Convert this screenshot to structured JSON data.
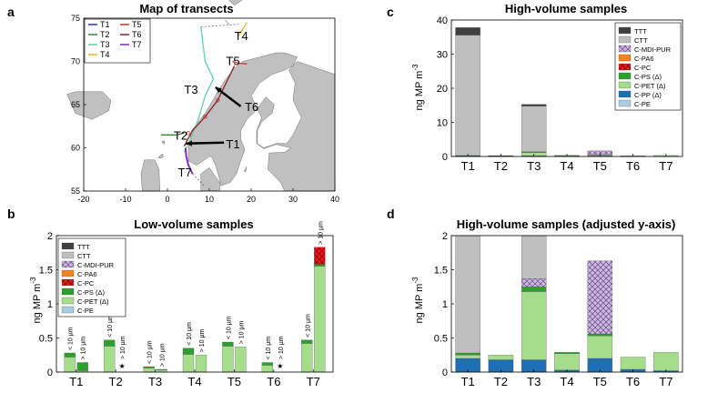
{
  "colors": {
    "TTT": "#404040",
    "CTT": "#bfbfbf",
    "C-MDI-PUR": "#cdb7e0",
    "C-PA6": "#f5821f",
    "C-PC": "#e41a1c",
    "C-PS (Δ)": "#2ca02c",
    "C-PET (Δ)": "#a6dd8c",
    "C-PP (Δ)": "#1f6fb4",
    "C-PE": "#a9cce3",
    "land": "#c0c0c0",
    "T1": "#1f3aa0",
    "T2": "#2e8b2e",
    "T3": "#5fd0b0",
    "T4": "#f0b020",
    "T5": "#c0392b",
    "T6": "#8b2323",
    "T7": "#7b2fbe"
  },
  "icons": {
    "arrow": "black-arrow-icon",
    "star": "star-glyph"
  },
  "star_glyph": "★",
  "chart_data": [
    {
      "panel": "a",
      "type": "map",
      "title": "Map of transects",
      "xlim": [
        -20,
        40
      ],
      "ylim": [
        55,
        75
      ],
      "xticks": [
        "-20",
        "-10",
        "0",
        "10",
        "20",
        "30",
        "40"
      ],
      "yticks": [
        "55",
        "60",
        "65",
        "70",
        "75"
      ],
      "legend": [
        "T1",
        "T2",
        "T3",
        "T4",
        "T5",
        "T6",
        "T7"
      ],
      "legend_position": "top-left",
      "annotations": [
        {
          "text": "T1",
          "lon": 14,
          "lat": 60.5
        },
        {
          "text": "T2",
          "lon": 1.5,
          "lat": 61.5
        },
        {
          "text": "T3",
          "lon": 4,
          "lat": 66.8
        },
        {
          "text": "T4",
          "lon": 16,
          "lat": 73
        },
        {
          "text": "T5",
          "lon": 14,
          "lat": 70.1
        },
        {
          "text": "T6",
          "lon": 18.5,
          "lat": 64.8
        },
        {
          "text": "T7",
          "lon": 2.5,
          "lat": 57.2
        }
      ],
      "transects": [
        {
          "name": "T1",
          "path": [
            [
              4,
              60.2
            ],
            [
              4.5,
              60.5
            ]
          ]
        },
        {
          "name": "T2",
          "path": [
            [
              -1.5,
              61.5
            ],
            [
              2,
              61.5
            ],
            [
              4,
              61.7
            ]
          ]
        },
        {
          "name": "T3",
          "path": [
            [
              4,
              59.5
            ],
            [
              5.5,
              61
            ],
            [
              7.5,
              63.5
            ],
            [
              9,
              66
            ],
            [
              11,
              68
            ],
            [
              9,
              70
            ],
            [
              8,
              74
            ]
          ]
        },
        {
          "name": "T4",
          "path": [
            [
              17,
              73
            ],
            [
              19,
              74.5
            ]
          ]
        },
        {
          "name": "T5",
          "path": [
            [
              15.5,
              70
            ],
            [
              17,
              69.8
            ],
            [
              19,
              69.7
            ]
          ]
        },
        {
          "name": "T6",
          "path": [
            [
              4,
              60.2
            ],
            [
              6,
              62
            ],
            [
              9,
              63.6
            ],
            [
              12,
              65.5
            ],
            [
              14,
              67.5
            ],
            [
              16,
              69.5
            ]
          ]
        },
        {
          "name": "T7",
          "path": [
            [
              4.3,
              60
            ],
            [
              4.5,
              59
            ],
            [
              5,
              58
            ],
            [
              6,
              57
            ]
          ]
        }
      ]
    },
    {
      "panel": "b",
      "type": "bar",
      "stacked": true,
      "title": "Low-volume samples",
      "ylabel": "ng MP m",
      "ylabel_sup": "-3",
      "ylim": [
        0,
        2
      ],
      "yticks": [
        "0",
        "0.5",
        "1",
        "1.5",
        "2"
      ],
      "categories": [
        "T1",
        "T2",
        "T3",
        "T4",
        "T5",
        "T6",
        "T7"
      ],
      "legend_position": "top-left",
      "bar_labels": {
        "small": "< 10 µm",
        "large": "> 10 µm"
      },
      "small_fraction": [
        {
          "C-PET (Δ)": 0.22,
          "C-PS (Δ)": 0.06
        },
        {
          "C-PET (Δ)": 0.38,
          "C-PS (Δ)": 0.09
        },
        {
          "C-PET (Δ)": 0.06,
          "C-PS (Δ)": 0.02
        },
        {
          "C-PET (Δ)": 0.26,
          "C-PS (Δ)": 0.09
        },
        {
          "C-PET (Δ)": 0.38,
          "C-PS (Δ)": 0.06
        },
        {
          "C-PET (Δ)": 0.1,
          "C-PS (Δ)": 0.04
        },
        {
          "C-PET (Δ)": 0.42,
          "C-PS (Δ)": 0.05
        }
      ],
      "large_fraction": [
        {
          "C-PET (Δ)": 0.02,
          "C-PS (Δ)": 0.12
        },
        {
          "star": true
        },
        {
          "C-PET (Δ)": 0.03,
          "C-PS (Δ)": 0.01
        },
        {
          "C-PET (Δ)": 0.25
        },
        {
          "C-PET (Δ)": 0.37
        },
        {
          "star": true
        },
        {
          "C-PET (Δ)": 1.55,
          "C-PS (Δ)": 0.03,
          "C-PC": 0.25
        }
      ]
    },
    {
      "panel": "c",
      "type": "bar",
      "stacked": true,
      "title": "High-volume samples",
      "ylabel": "ng MP m",
      "ylabel_sup": "-3",
      "ylim": [
        0,
        40
      ],
      "yticks": [
        "0",
        "10",
        "20",
        "30",
        "40"
      ],
      "categories": [
        "T1",
        "T2",
        "T3",
        "T4",
        "T5",
        "T6",
        "T7"
      ],
      "legend_position": "top-right",
      "stacks": [
        {
          "C-PP (Δ)": 0.2,
          "C-PET (Δ)": 0.05,
          "C-PS (Δ)": 0.03,
          "CTT": 35.3,
          "TTT": 2.2
        },
        {
          "C-PP (Δ)": 0.18,
          "C-PET (Δ)": 0.07
        },
        {
          "C-PP (Δ)": 0.18,
          "C-PET (Δ)": 1.0,
          "C-PS (Δ)": 0.07,
          "C-MDI-PUR": 0.12,
          "CTT": 13.4,
          "TTT": 0.5
        },
        {
          "C-PP (Δ)": 0.03,
          "C-PET (Δ)": 0.24,
          "C-PS (Δ)": 0.02
        },
        {
          "C-PP (Δ)": 0.2,
          "C-PET (Δ)": 0.33,
          "C-PS (Δ)": 0.03,
          "C-MDI-PUR": 1.07
        },
        {
          "C-PP (Δ)": 0.04,
          "C-PET (Δ)": 0.18
        },
        {
          "C-PP (Δ)": 0.02,
          "C-PET (Δ)": 0.27
        }
      ]
    },
    {
      "panel": "d",
      "type": "bar",
      "stacked": true,
      "title": "High-volume samples (adjusted y-axis)",
      "ylabel": "ng MP m",
      "ylabel_sup": "-3",
      "ylim": [
        0,
        2
      ],
      "yticks": [
        "0",
        "0.5",
        "1",
        "1.5",
        "2"
      ],
      "categories": [
        "T1",
        "T2",
        "T3",
        "T4",
        "T5",
        "T6",
        "T7"
      ],
      "source": "same data as panel c, clipped at 2"
    }
  ],
  "panel_letters": [
    "a",
    "b",
    "c",
    "d"
  ],
  "legend_b": [
    "TTT",
    "CTT",
    "C-MDI-PUR",
    "C-PA6",
    "C-PC",
    "C-PS (Δ)",
    "C-PET (Δ)",
    "C-PE"
  ],
  "legend_c": [
    "TTT",
    "CTT",
    "C-MDI-PUR",
    "C-PA6",
    "C-PC",
    "C-PS (Δ)",
    "C-PET (Δ)",
    "C-PP (Δ)",
    "C-PE"
  ],
  "hatched": [
    "C-MDI-PUR",
    "C-PC"
  ]
}
